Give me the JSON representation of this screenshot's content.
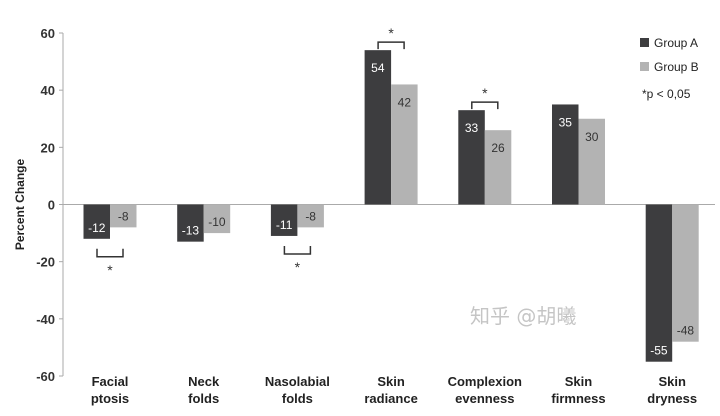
{
  "chart_data": {
    "type": "bar",
    "title": "",
    "xlabel": "",
    "ylabel": "Percent Change",
    "ylim": [
      -60,
      60
    ],
    "yticks": [
      60,
      40,
      20,
      0,
      -20,
      -40,
      -60
    ],
    "categories": [
      [
        "Facial",
        "ptosis"
      ],
      [
        "Neck",
        "folds"
      ],
      [
        "Nasolabial",
        "folds"
      ],
      [
        "Skin",
        "radiance"
      ],
      [
        "Complexion",
        "evenness"
      ],
      [
        "Skin",
        "firmness"
      ],
      [
        "Skin",
        "dryness"
      ]
    ],
    "series": [
      {
        "name": "Group A",
        "color": "#3d3d3f",
        "values": [
          -12,
          -13,
          -11,
          54,
          33,
          35,
          -55
        ]
      },
      {
        "name": "Group B",
        "color": "#b3b3b3",
        "values": [
          -8,
          -10,
          -8,
          42,
          26,
          30,
          -48
        ]
      }
    ],
    "significance": [
      {
        "category_index": 0,
        "marker": "*",
        "position": "below"
      },
      {
        "category_index": 2,
        "marker": "*",
        "position": "below"
      },
      {
        "category_index": 3,
        "marker": "*",
        "position": "above"
      },
      {
        "category_index": 4,
        "marker": "*",
        "position": "above"
      }
    ],
    "legend_note": "*p < 0,05",
    "legend_position": "top-right",
    "grid": false
  },
  "watermark": "知乎 @胡曦"
}
